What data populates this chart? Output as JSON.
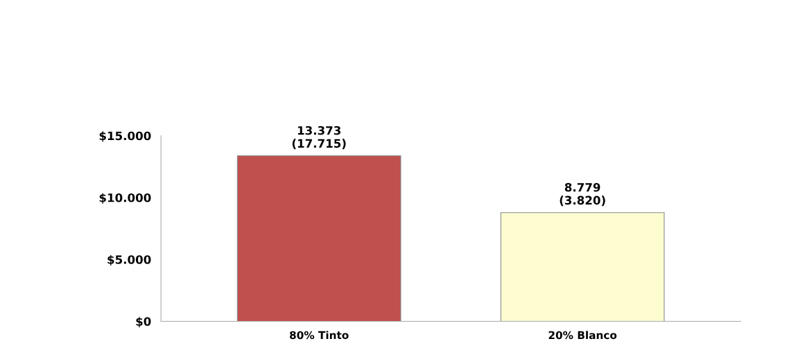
{
  "chart_data": {
    "type": "bar",
    "categories": [
      "80% Tinto",
      "20% Blanco"
    ],
    "values": [
      13373,
      8779
    ],
    "colors": [
      "#c0504d",
      "#fdfdd0"
    ],
    "value_labels": [
      "13.373\n(17.715)",
      "8.779\n(3.820)"
    ],
    "ylim": [
      0,
      15000
    ],
    "yticks": [
      {
        "value": 0,
        "label": "$0"
      },
      {
        "value": 5000,
        "label": "$5.000"
      },
      {
        "value": 10000,
        "label": "$10.000"
      },
      {
        "value": 15000,
        "label": "$15.000"
      }
    ],
    "grid": false,
    "legend": false
  }
}
